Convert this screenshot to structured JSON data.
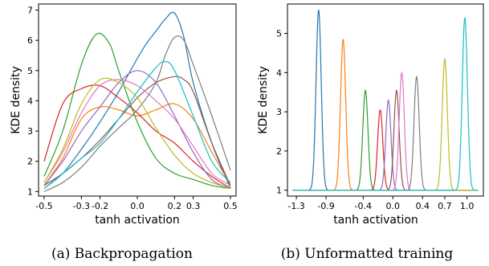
{
  "chart_data": [
    {
      "type": "line",
      "caption": "(a) Backpropagation",
      "xlabel": "tanh activation",
      "ylabel": "KDE density",
      "xlim": [
        -0.53,
        0.53
      ],
      "ylim": [
        0.85,
        7.2
      ],
      "xticks": [
        -0.5,
        -0.3,
        -0.2,
        0.0,
        0.2,
        0.3,
        0.5
      ],
      "xtick_labels": [
        "-0.5",
        "-0.3",
        "-0.2",
        "0.0",
        "0.2",
        "0.3",
        "0.5"
      ],
      "yticks": [
        1,
        2,
        3,
        4,
        5,
        6,
        7
      ],
      "ytick_labels": [
        "1",
        "2",
        "3",
        "4",
        "5",
        "6",
        "7"
      ],
      "grid": false,
      "series": [
        {
          "color": "#1f77b4",
          "x": [
            -0.5,
            -0.4,
            -0.3,
            -0.2,
            -0.1,
            0.0,
            0.05,
            0.1,
            0.15,
            0.2,
            0.25,
            0.3,
            0.4,
            0.5
          ],
          "y": [
            1.1,
            1.6,
            2.4,
            3.3,
            4.3,
            5.4,
            5.9,
            6.3,
            6.7,
            6.9,
            6.1,
            4.6,
            2.6,
            1.1
          ]
        },
        {
          "color": "#ff7f0e",
          "x": [
            -0.5,
            -0.4,
            -0.3,
            -0.2,
            -0.1,
            0.0,
            0.1,
            0.2,
            0.3,
            0.4,
            0.5
          ],
          "y": [
            1.2,
            2.1,
            3.4,
            3.8,
            3.7,
            3.5,
            3.7,
            3.9,
            3.4,
            2.3,
            1.2
          ]
        },
        {
          "color": "#2ca02c",
          "x": [
            -0.5,
            -0.4,
            -0.3,
            -0.22,
            -0.15,
            -0.1,
            0.0,
            0.1,
            0.2,
            0.3,
            0.4,
            0.5
          ],
          "y": [
            1.5,
            3.0,
            5.2,
            6.2,
            5.9,
            5.0,
            3.3,
            2.1,
            1.6,
            1.4,
            1.2,
            1.1
          ]
        },
        {
          "color": "#d62728",
          "x": [
            -0.5,
            -0.4,
            -0.3,
            -0.2,
            -0.1,
            0.0,
            0.1,
            0.2,
            0.3,
            0.4,
            0.5
          ],
          "y": [
            2.0,
            3.9,
            4.4,
            4.5,
            4.1,
            3.6,
            3.0,
            2.6,
            2.0,
            1.5,
            1.1
          ]
        },
        {
          "color": "#9467bd",
          "x": [
            -0.5,
            -0.4,
            -0.3,
            -0.2,
            -0.1,
            0.0,
            0.1,
            0.2,
            0.3,
            0.4,
            0.5
          ],
          "y": [
            1.2,
            2.0,
            3.0,
            3.8,
            4.6,
            5.0,
            4.6,
            3.5,
            2.3,
            1.4,
            1.1
          ]
        },
        {
          "color": "#8c564b",
          "x": [
            -0.5,
            -0.4,
            -0.3,
            -0.2,
            -0.1,
            0.0,
            0.1,
            0.2,
            0.25,
            0.3,
            0.4,
            0.5
          ],
          "y": [
            1.2,
            1.6,
            2.1,
            2.7,
            3.4,
            4.1,
            4.6,
            4.8,
            4.7,
            4.3,
            2.6,
            1.2
          ]
        },
        {
          "color": "#e377c2",
          "x": [
            -0.5,
            -0.4,
            -0.3,
            -0.2,
            -0.1,
            0.0,
            0.1,
            0.2,
            0.3,
            0.4,
            0.5
          ],
          "y": [
            1.3,
            2.3,
            3.6,
            4.5,
            4.7,
            4.5,
            4.0,
            3.4,
            2.5,
            1.6,
            1.2
          ]
        },
        {
          "color": "#7f7f7f",
          "x": [
            -0.5,
            -0.4,
            -0.3,
            -0.2,
            -0.1,
            0.0,
            0.1,
            0.15,
            0.2,
            0.25,
            0.3,
            0.4,
            0.5
          ],
          "y": [
            1.0,
            1.3,
            1.8,
            2.5,
            3.1,
            3.7,
            4.6,
            5.5,
            6.1,
            6.0,
            5.2,
            3.5,
            1.7
          ]
        },
        {
          "color": "#bcbd22",
          "x": [
            -0.5,
            -0.4,
            -0.3,
            -0.2,
            -0.1,
            0.0,
            0.1,
            0.2,
            0.3,
            0.4,
            0.5
          ],
          "y": [
            1.3,
            2.4,
            3.9,
            4.7,
            4.6,
            4.1,
            3.1,
            2.2,
            1.6,
            1.3,
            1.1
          ]
        },
        {
          "color": "#17becf",
          "x": [
            -0.5,
            -0.4,
            -0.3,
            -0.2,
            -0.1,
            0.0,
            0.1,
            0.15,
            0.2,
            0.3,
            0.4,
            0.5
          ],
          "y": [
            1.1,
            1.6,
            2.1,
            2.6,
            3.4,
            4.3,
            5.1,
            5.3,
            5.0,
            3.5,
            2.0,
            1.3
          ]
        }
      ]
    },
    {
      "type": "line",
      "caption": "(b) Unformatted training",
      "xlabel": "tanh activation",
      "ylabel": "KDE density",
      "xlim": [
        -1.42,
        1.22
      ],
      "ylim": [
        0.85,
        5.75
      ],
      "xticks": [
        -1.3,
        -0.9,
        -0.4,
        0.0,
        0.4,
        0.7,
        1.0
      ],
      "xtick_labels": [
        "-1.3",
        "-0.9",
        "-0.4",
        "0.0",
        "0.4",
        "0.7",
        "1.0"
      ],
      "yticks": [
        1,
        2,
        3,
        4,
        5
      ],
      "ytick_labels": [
        "1",
        "2",
        "3",
        "4",
        "5"
      ],
      "grid": false,
      "baseline": 1.0,
      "peak_width": 0.035,
      "series": [
        {
          "color": "#1f77b4",
          "peak_x": -1.0,
          "peak_y": 5.6
        },
        {
          "color": "#ff7f0e",
          "peak_x": -0.67,
          "peak_y": 4.85
        },
        {
          "color": "#2ca02c",
          "peak_x": -0.37,
          "peak_y": 3.55
        },
        {
          "color": "#d62728",
          "peak_x": -0.17,
          "peak_y": 3.05
        },
        {
          "color": "#9467bd",
          "peak_x": -0.06,
          "peak_y": 3.3
        },
        {
          "color": "#8c564b",
          "peak_x": 0.05,
          "peak_y": 3.55
        },
        {
          "color": "#e377c2",
          "peak_x": 0.12,
          "peak_y": 4.0
        },
        {
          "color": "#7f7f7f",
          "peak_x": 0.32,
          "peak_y": 3.9
        },
        {
          "color": "#bcbd22",
          "peak_x": 0.7,
          "peak_y": 4.35
        },
        {
          "color": "#17becf",
          "peak_x": 0.97,
          "peak_y": 5.4
        }
      ]
    }
  ]
}
